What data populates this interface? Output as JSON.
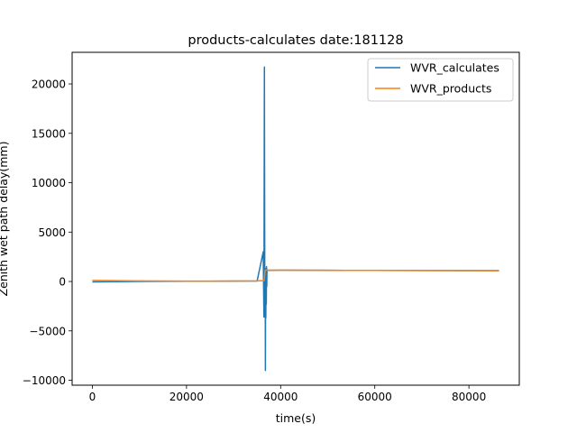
{
  "chart_data": {
    "type": "line",
    "title": "products-calculates date:181128",
    "xlabel": "time(s)",
    "ylabel": "Zenith wet path delay(mm)",
    "xlim": [
      -4300,
      90700
    ],
    "ylim": [
      -10500,
      23200
    ],
    "xticks": [
      0,
      20000,
      40000,
      60000,
      80000
    ],
    "yticks": [
      -10000,
      -5000,
      0,
      5000,
      10000,
      15000,
      20000
    ],
    "grid": false,
    "legend": {
      "placement": "top-right"
    },
    "series": [
      {
        "name": "WVR_calculates",
        "color": "#1f77b4",
        "x": [
          0,
          5000,
          10000,
          15000,
          20000,
          25000,
          30000,
          35000,
          36300,
          36450,
          36550,
          36620,
          36680,
          36720,
          36760,
          36800,
          36850,
          36900,
          36950,
          37000,
          37050,
          37100,
          37200,
          37400,
          37600,
          38000,
          40000,
          50000,
          60000,
          70000,
          80000,
          86400
        ],
        "y": [
          -40,
          -20,
          0,
          10,
          20,
          30,
          40,
          50,
          3000,
          -3600,
          21700,
          1500,
          -1000,
          1200,
          -9000,
          1100,
          -3700,
          1300,
          -2300,
          1500,
          -500,
          1200,
          1100,
          1150,
          1120,
          1130,
          1140,
          1130,
          1120,
          1110,
          1100,
          1100
        ]
      },
      {
        "name": "WVR_products",
        "color": "#ff7f0e",
        "x": [
          0,
          5000,
          10000,
          15000,
          20000,
          25000,
          30000,
          35000,
          36500,
          36700,
          37000,
          38000,
          40000,
          50000,
          60000,
          70000,
          80000,
          86400
        ],
        "y": [
          100,
          80,
          60,
          50,
          40,
          40,
          50,
          60,
          80,
          1150,
          1160,
          1150,
          1140,
          1130,
          1120,
          1110,
          1110,
          1100
        ]
      }
    ]
  }
}
